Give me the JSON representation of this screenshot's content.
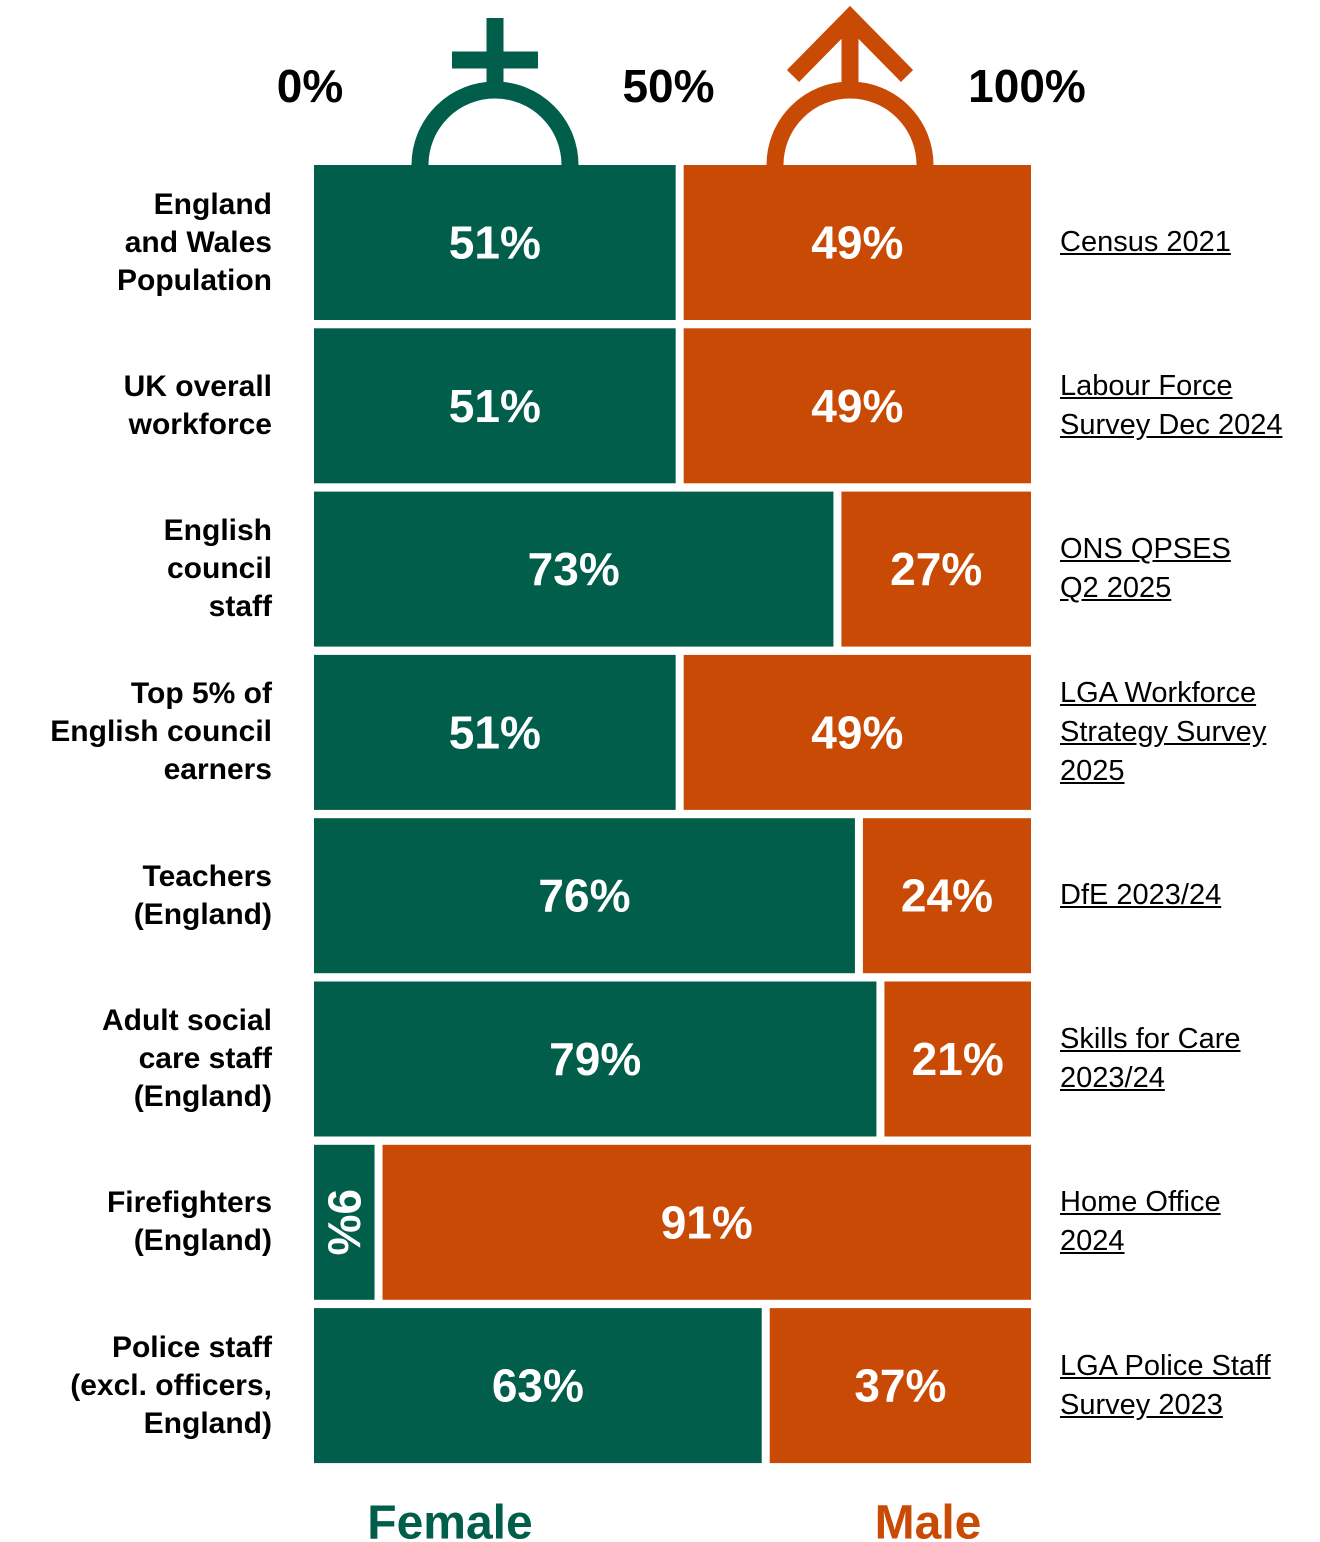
{
  "chart_data": {
    "type": "stacked-bar-100",
    "categories": [
      "England\nand Wales\nPopulation",
      "UK overall\nworkforce",
      "English\ncouncil\nstaff",
      "Top 5% of\nEnglish council\nearners",
      "Teachers\n(England)",
      "Adult social\ncare staff\n(England)",
      "Firefighters\n(England)",
      "Police staff\n(excl. officers,\nEngland)"
    ],
    "series": [
      {
        "name": "Female",
        "color": "#005e4b",
        "values": [
          51,
          51,
          73,
          51,
          76,
          79,
          9,
          63
        ],
        "value_labels": [
          "51%",
          "51%",
          "73%",
          "51%",
          "76%",
          "79%",
          "9%",
          "63%"
        ]
      },
      {
        "name": "Male",
        "color": "#c94a04",
        "values": [
          49,
          49,
          27,
          49,
          24,
          21,
          91,
          37
        ],
        "value_labels": [
          "49%",
          "49%",
          "27%",
          "49%",
          "24%",
          "21%",
          "91%",
          "37%"
        ]
      }
    ],
    "sources": [
      "Census 2021",
      "Labour Force\nSurvey Dec 2024",
      "ONS QPSES\nQ2 2025",
      "LGA Workforce\nStrategy Survey\n2025",
      "DfE 2023/24",
      "Skills for Care\n2023/24",
      "Home Office\n2024",
      "LGA Police Staff\nSurvey 2023"
    ],
    "xlim": [
      0,
      100
    ],
    "xticks": [
      {
        "value": 0,
        "label": "0%"
      },
      {
        "value": 50,
        "label": "50%"
      },
      {
        "value": 100,
        "label": "100%"
      }
    ]
  }
}
